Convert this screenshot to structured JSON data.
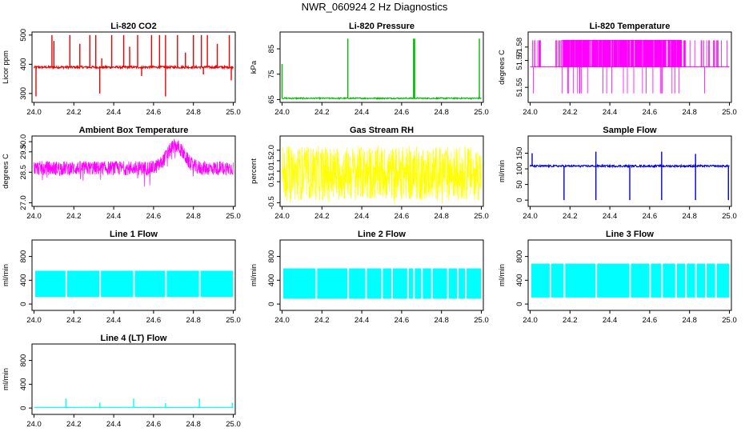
{
  "page": {
    "title": "NWR_060924  2 Hz Diagnostics"
  },
  "chart_data": [
    {
      "type": "line",
      "title": "Li-820 CO2",
      "ylabel": "Licor ppm",
      "xlim": [
        23.99,
        25.01
      ],
      "ylim": [
        275,
        505
      ],
      "xticks": [
        "24.0",
        "24.2",
        "24.4",
        "24.6",
        "24.8",
        "25.0"
      ],
      "yticks": [
        "300",
        "400",
        "500"
      ],
      "yticks_rotated": true,
      "color": "#ee0000",
      "baseline": 390,
      "noise": 4,
      "spikes": [
        [
          24.09,
          500
        ],
        [
          24.1,
          480
        ],
        [
          24.18,
          500
        ],
        [
          24.23,
          470
        ],
        [
          24.28,
          500
        ],
        [
          24.31,
          500
        ],
        [
          24.34,
          420
        ],
        [
          24.39,
          500
        ],
        [
          24.45,
          500
        ],
        [
          24.48,
          460
        ],
        [
          24.52,
          500
        ],
        [
          24.59,
          500
        ],
        [
          24.63,
          500
        ],
        [
          24.66,
          500
        ],
        [
          24.72,
          500
        ],
        [
          24.76,
          440
        ],
        [
          24.8,
          500
        ],
        [
          24.84,
          500
        ],
        [
          24.87,
          500
        ],
        [
          24.92,
          470
        ],
        [
          24.98,
          500
        ]
      ],
      "dips": [
        [
          24.01,
          290
        ],
        [
          24.33,
          300
        ],
        [
          24.54,
          360
        ],
        [
          24.66,
          290
        ],
        [
          24.85,
          365
        ],
        [
          24.99,
          345
        ]
      ],
      "style": "trace"
    },
    {
      "type": "line",
      "title": "Li-820 Pressure",
      "ylabel": "kPa",
      "xlim": [
        23.99,
        25.01
      ],
      "ylim": [
        64.5,
        91
      ],
      "xticks": [
        "24.0",
        "24.2",
        "24.4",
        "24.6",
        "24.8",
        "25.0"
      ],
      "yticks": [
        "65",
        "75",
        "85"
      ],
      "yticks_rotated": true,
      "color": "#00bb00",
      "baseline": 65.5,
      "noise": 0.25,
      "spikes": [
        [
          24.0,
          79
        ],
        [
          24.33,
          89
        ],
        [
          24.66,
          89
        ],
        [
          24.665,
          89
        ],
        [
          24.99,
          89
        ]
      ],
      "dips": [],
      "style": "trace"
    },
    {
      "type": "line",
      "title": "Li-820 Temperature",
      "ylabel": "degrees C",
      "xlim": [
        23.99,
        25.01
      ],
      "ylim": [
        51.54,
        51.59
      ],
      "xticks": [
        "24.0",
        "24.2",
        "24.4",
        "24.6",
        "24.8",
        "25.0"
      ],
      "yticks": [
        "51.55",
        "51.57",
        "51.58"
      ],
      "yticks_rotated": true,
      "color": "#ff00ff",
      "baseline": 51.565,
      "noise": 0,
      "spikes": [],
      "dips": [],
      "style": "quantized",
      "levels": [
        51.5455,
        51.5652,
        51.585
      ]
    },
    {
      "type": "line",
      "title": "Ambient Box Temperature",
      "ylabel": "degrees C",
      "xlim": [
        23.99,
        25.01
      ],
      "ylim": [
        26.9,
        30.2
      ],
      "xticks": [
        "24.0",
        "24.2",
        "24.4",
        "24.6",
        "24.8",
        "25.0"
      ],
      "yticks": [
        "27.0",
        "28.5",
        "29.5",
        "30.0"
      ],
      "yticks_rotated": true,
      "color": "#ff00ff",
      "baseline": 28.7,
      "noise": 0.35,
      "spikes": [],
      "dips": [],
      "style": "band",
      "hump": {
        "center": 24.71,
        "width": 0.06,
        "height": 1.1
      }
    },
    {
      "type": "line",
      "title": "Gas Stream RH",
      "ylabel": "percent",
      "xlim": [
        23.99,
        25.01
      ],
      "ylim": [
        -0.6,
        2.6
      ],
      "xticks": [
        "24.0",
        "24.2",
        "24.4",
        "24.6",
        "24.8",
        "25.0"
      ],
      "yticks": [
        "-0.5",
        "0.5",
        "1.0",
        "1.5",
        "2.0"
      ],
      "yticks_rotated": true,
      "color": "#ffff00",
      "baseline": 0.9,
      "noise": 1.3,
      "spikes": [],
      "dips": [],
      "style": "band"
    },
    {
      "type": "line",
      "title": "Sample Flow",
      "ylabel": "ml/min",
      "xlim": [
        23.99,
        25.01
      ],
      "ylim": [
        -15,
        200
      ],
      "xticks": [
        "24.0",
        "24.2",
        "24.4",
        "24.6",
        "24.8",
        "25.0"
      ],
      "yticks": [
        "0",
        "50",
        "100",
        "150"
      ],
      "yticks_rotated": false,
      "color": "#0000dd",
      "baseline": 109,
      "noise": 3,
      "spikes": [
        [
          24.01,
          150
        ],
        [
          24.33,
          155
        ],
        [
          24.66,
          155
        ],
        [
          24.83,
          148
        ]
      ],
      "dips": [
        [
          24.17,
          0
        ],
        [
          24.33,
          0
        ],
        [
          24.5,
          0
        ],
        [
          24.66,
          0
        ],
        [
          24.83,
          0
        ],
        [
          24.995,
          0
        ]
      ],
      "style": "trace"
    },
    {
      "type": "area",
      "title": "Line 1 Flow",
      "ylabel": "ml/min",
      "xlim": [
        23.99,
        25.01
      ],
      "ylim": [
        -80,
        1050
      ],
      "xticks": [
        "24.0",
        "24.2",
        "24.4",
        "24.6",
        "24.8",
        "25.0"
      ],
      "yticks": [
        "0",
        "400",
        "800"
      ],
      "yticks_rotated": false,
      "color": "#00ffff",
      "top": 560,
      "bottom": 120,
      "gaps": [
        24.16,
        24.33,
        24.5,
        24.66,
        24.83
      ],
      "x_end": 25.0
    },
    {
      "type": "area",
      "title": "Line 2 Flow",
      "ylabel": "ml/min",
      "xlim": [
        23.99,
        25.01
      ],
      "ylim": [
        -80,
        1050
      ],
      "xticks": [
        "24.0",
        "24.2",
        "24.4",
        "24.6",
        "24.8",
        "25.0"
      ],
      "yticks": [
        "0",
        "400",
        "800"
      ],
      "yticks_rotated": false,
      "color": "#00ffff",
      "top": 600,
      "bottom": 90,
      "gaps": [
        24.17,
        24.33,
        24.42,
        24.5,
        24.55,
        24.63,
        24.66,
        24.7,
        24.75,
        24.83,
        24.88,
        24.92
      ],
      "x_end": 25.0
    },
    {
      "type": "area",
      "title": "Line 3 Flow",
      "ylabel": "ml/min",
      "xlim": [
        23.99,
        25.01
      ],
      "ylim": [
        -80,
        1050
      ],
      "xticks": [
        "24.0",
        "24.2",
        "24.4",
        "24.6",
        "24.8",
        "25.0"
      ],
      "yticks": [
        "0",
        "400",
        "800"
      ],
      "yticks_rotated": false,
      "color": "#00ffff",
      "top": 680,
      "bottom": 110,
      "gaps": [
        24.1,
        24.17,
        24.33,
        24.5,
        24.6,
        24.66,
        24.73,
        24.78,
        24.83,
        24.88,
        24.93
      ],
      "x_end": 25.0
    },
    {
      "type": "line",
      "title": "Line 4 (LT) Flow",
      "ylabel": "ml/min",
      "xlim": [
        23.99,
        25.01
      ],
      "ylim": [
        -80,
        1050
      ],
      "xticks": [
        "24.0",
        "24.2",
        "24.4",
        "24.6",
        "24.8",
        "25.0"
      ],
      "yticks": [
        "0",
        "400",
        "800"
      ],
      "yticks_rotated": false,
      "color": "#00ffff",
      "baseline": 10,
      "noise": 2,
      "spikes": [
        [
          24.16,
          160
        ],
        [
          24.33,
          90
        ],
        [
          24.5,
          160
        ],
        [
          24.66,
          80
        ],
        [
          24.83,
          160
        ],
        [
          24.995,
          90
        ]
      ],
      "dips": [],
      "style": "trace"
    }
  ]
}
